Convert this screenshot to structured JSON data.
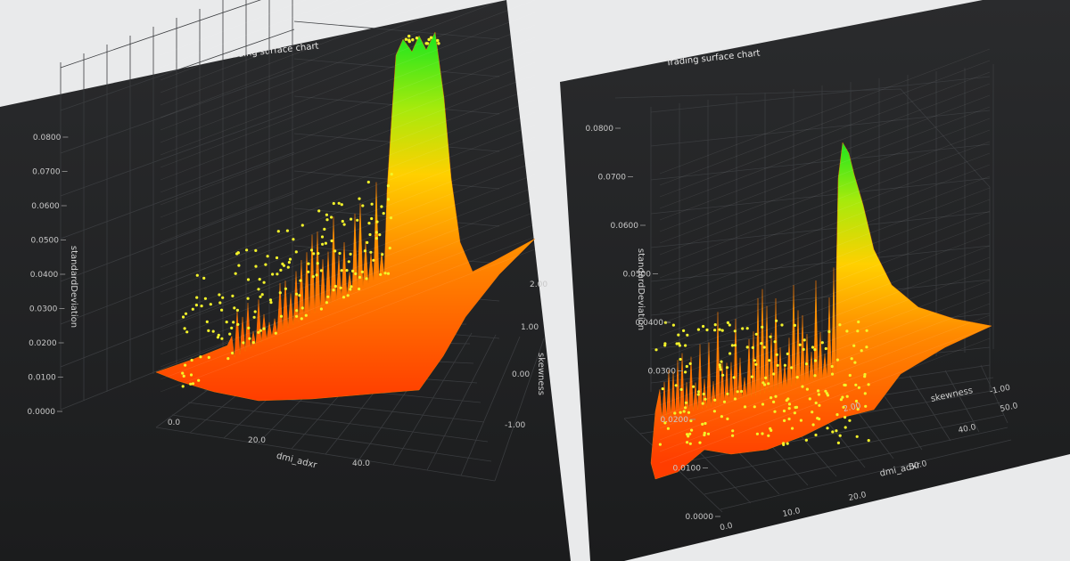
{
  "colors": {
    "page_background": "#e9eaeb",
    "panel_background": "#232425",
    "grid": "#3a3c3f",
    "surface_low": "#ff4a00",
    "surface_mid": "#ffd000",
    "surface_high": "#22ee22",
    "scatter_points": "#f3f32a"
  },
  "chart_data": [
    {
      "type": "surface",
      "view": "left",
      "title": "Trading surface chart",
      "axes": {
        "x": {
          "label": "dmi_adxr",
          "ticks": [
            "0.0",
            "20.0",
            "40.0"
          ],
          "range": [
            0,
            50
          ]
        },
        "y": {
          "label": "standardDeviation",
          "ticks": [
            "0.0000",
            "0.0100",
            "0.0200",
            "0.0300",
            "0.0400",
            "0.0500",
            "0.0600",
            "0.0700",
            "0.0800"
          ],
          "range": [
            0,
            0.08
          ]
        },
        "z": {
          "label": "skewness",
          "ticks": [
            "-1.00",
            "0.00",
            "1.00",
            "2.00"
          ],
          "range": [
            -1.5,
            2
          ]
        }
      },
      "ridge_peak_standardDeviation": 0.084,
      "series": [
        {
          "kind": "surface",
          "color_scale": [
            "#ff4a00",
            "#ffd000",
            "#22ee22"
          ]
        },
        {
          "kind": "scatter",
          "color": "#f3f32a"
        }
      ]
    },
    {
      "type": "surface",
      "view": "right",
      "title": "Trading surface chart",
      "axes": {
        "x": {
          "label": "dmi_adxr",
          "ticks": [
            "0.0",
            "10.0",
            "20.0",
            "30.0",
            "40.0",
            "50.0"
          ],
          "range": [
            0,
            50
          ]
        },
        "y": {
          "label": "standardDeviation",
          "ticks": [
            "0.0000",
            "0.0100",
            "0.0200",
            "0.0300",
            "0.0400",
            "0.0500",
            "0.0600",
            "0.0700",
            "0.0800"
          ],
          "range": [
            0,
            0.08
          ]
        },
        "z": {
          "label": "skewness",
          "ticks": [
            "-1.00",
            "2.00"
          ],
          "range": [
            -1.5,
            2
          ]
        }
      },
      "ridge_peak_standardDeviation": 0.075,
      "series": [
        {
          "kind": "surface",
          "color_scale": [
            "#ff4a00",
            "#ffd000",
            "#22ee22"
          ]
        },
        {
          "kind": "scatter",
          "color": "#f3f32a"
        }
      ]
    }
  ]
}
